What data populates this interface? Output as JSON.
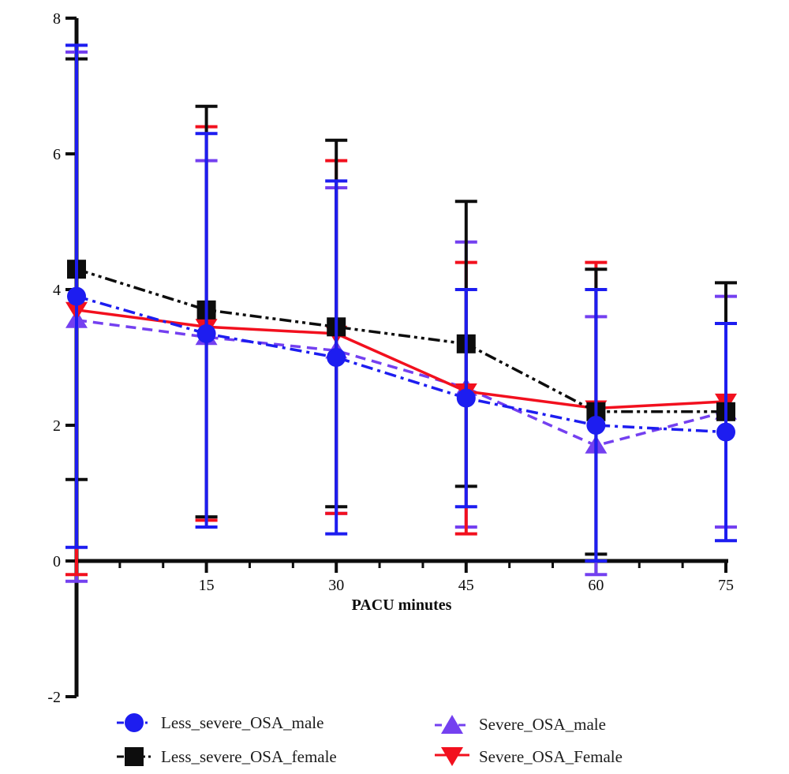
{
  "chart_data": {
    "type": "line",
    "title": "",
    "xlabel": "PACU minutes",
    "ylabel": "",
    "x": [
      0,
      15,
      30,
      45,
      60,
      75
    ],
    "x_tick_labels": [
      "15",
      "30",
      "45",
      "60",
      "75"
    ],
    "x_label_positions": [
      15,
      30,
      45,
      60,
      75
    ],
    "x_minor_step": 5,
    "y_ticks": [
      -2,
      0,
      2,
      4,
      6,
      8
    ],
    "y_tick_labels": [
      "-2",
      "0",
      "2",
      "4",
      "6",
      "8"
    ],
    "ylim": [
      -2,
      8
    ],
    "xlim": [
      0,
      75
    ],
    "grid": false,
    "legend_position": "bottom",
    "axis_color": "#0d0d0d",
    "series": [
      {
        "name": "Less_severe_OSA_male",
        "color": "#1d1df0",
        "marker": "circle",
        "line_style": "dash-dot",
        "values": [
          3.9,
          3.35,
          3.0,
          2.4,
          2.0,
          1.9
        ],
        "err_top": [
          7.6,
          6.3,
          5.6,
          4.0,
          4.0,
          3.5
        ],
        "err_bottom": [
          0.2,
          0.5,
          0.4,
          0.8,
          0.0,
          0.3
        ]
      },
      {
        "name": "Less_severe_OSA_female",
        "color": "#0d0d0d",
        "marker": "square",
        "line_style": "dash-dot-dot",
        "values": [
          4.3,
          3.7,
          3.45,
          3.2,
          2.2,
          2.2
        ],
        "err_top": [
          7.4,
          6.7,
          6.2,
          5.3,
          4.3,
          4.1
        ],
        "err_bottom": [
          1.2,
          0.65,
          0.8,
          1.1,
          0.1,
          null
        ]
      },
      {
        "name": "Severe_OSA_male",
        "color": "#7440f0",
        "marker": "triangle-up",
        "line_style": "dashed",
        "values": [
          3.55,
          3.3,
          3.1,
          2.55,
          1.7,
          2.2
        ],
        "err_top": [
          7.5,
          5.9,
          5.5,
          4.7,
          3.6,
          3.9
        ],
        "err_bottom": [
          -0.3,
          null,
          0.7,
          0.5,
          -0.2,
          0.5
        ]
      },
      {
        "name": "Severe_OSA_Female",
        "color": "#f2101e",
        "marker": "triangle-down",
        "line_style": "solid",
        "values": [
          3.7,
          3.45,
          3.35,
          2.5,
          2.25,
          2.35
        ],
        "err_top": [
          null,
          6.4,
          5.9,
          4.4,
          4.4,
          null
        ],
        "err_bottom": [
          -0.2,
          0.6,
          0.7,
          0.4,
          null,
          null
        ]
      }
    ]
  }
}
